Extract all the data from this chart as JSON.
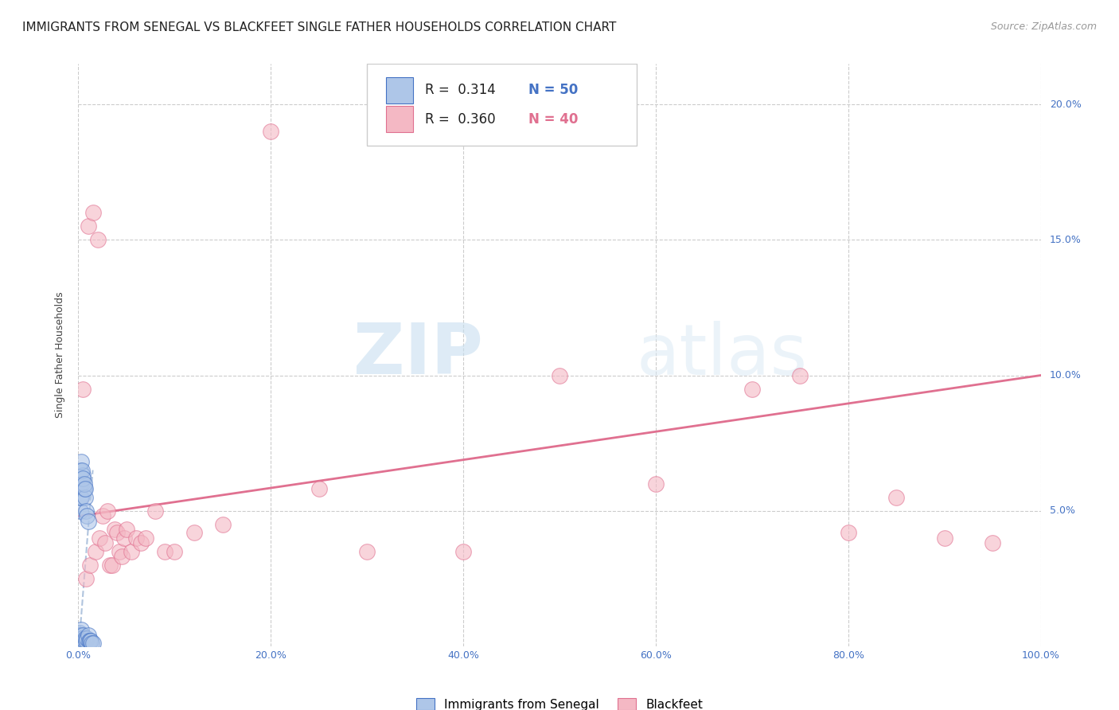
{
  "title": "IMMIGRANTS FROM SENEGAL VS BLACKFEET SINGLE FATHER HOUSEHOLDS CORRELATION CHART",
  "source": "Source: ZipAtlas.com",
  "ylabel": "Single Father Households",
  "xlim": [
    0,
    1.0
  ],
  "ylim": [
    0,
    0.215
  ],
  "xtick_labels": [
    "0.0%",
    "20.0%",
    "40.0%",
    "60.0%",
    "80.0%",
    "100.0%"
  ],
  "xtick_values": [
    0,
    0.2,
    0.4,
    0.6,
    0.8,
    1.0
  ],
  "ytick_labels": [
    "5.0%",
    "10.0%",
    "15.0%",
    "20.0%"
  ],
  "ytick_values": [
    0.05,
    0.1,
    0.15,
    0.2
  ],
  "legend_labels": [
    "Immigrants from Senegal",
    "Blackfeet"
  ],
  "r_blue": "R =  0.314",
  "n_blue": "N = 50",
  "r_pink": "R =  0.360",
  "n_pink": "N = 40",
  "blue_color": "#aec6e8",
  "pink_color": "#f4b8c4",
  "blue_line_color": "#4472c4",
  "pink_line_color": "#e07090",
  "dashed_line_color": "#b0c4de",
  "watermark_zip": "ZIP",
  "watermark_atlas": "atlas",
  "title_fontsize": 11,
  "source_fontsize": 9,
  "axis_label_fontsize": 9,
  "tick_fontsize": 9,
  "legend_fontsize": 11,
  "blue_scatter_x": [
    0.001,
    0.001,
    0.001,
    0.001,
    0.001,
    0.001,
    0.001,
    0.001,
    0.001,
    0.001,
    0.002,
    0.002,
    0.002,
    0.002,
    0.002,
    0.002,
    0.002,
    0.002,
    0.002,
    0.003,
    0.003,
    0.003,
    0.003,
    0.003,
    0.004,
    0.004,
    0.004,
    0.005,
    0.005,
    0.005,
    0.006,
    0.006,
    0.007,
    0.007,
    0.008,
    0.008,
    0.009,
    0.009,
    0.01,
    0.01,
    0.011,
    0.012,
    0.013,
    0.014,
    0.015,
    0.003,
    0.004,
    0.005,
    0.006,
    0.007
  ],
  "blue_scatter_y": [
    0.0,
    0.0,
    0.0,
    0.001,
    0.001,
    0.002,
    0.002,
    0.003,
    0.004,
    0.005,
    0.0,
    0.001,
    0.002,
    0.003,
    0.004,
    0.05,
    0.055,
    0.06,
    0.065,
    0.0,
    0.002,
    0.004,
    0.006,
    0.055,
    0.0,
    0.003,
    0.06,
    0.001,
    0.004,
    0.063,
    0.002,
    0.058,
    0.003,
    0.055,
    0.002,
    0.05,
    0.003,
    0.048,
    0.004,
    0.046,
    0.002,
    0.002,
    0.002,
    0.001,
    0.001,
    0.068,
    0.065,
    0.062,
    0.06,
    0.058
  ],
  "pink_scatter_x": [
    0.005,
    0.008,
    0.01,
    0.012,
    0.015,
    0.018,
    0.02,
    0.022,
    0.025,
    0.028,
    0.03,
    0.033,
    0.035,
    0.038,
    0.04,
    0.043,
    0.045,
    0.048,
    0.05,
    0.055,
    0.06,
    0.065,
    0.07,
    0.08,
    0.09,
    0.1,
    0.12,
    0.15,
    0.2,
    0.25,
    0.3,
    0.4,
    0.5,
    0.6,
    0.7,
    0.75,
    0.8,
    0.85,
    0.9,
    0.95
  ],
  "pink_scatter_y": [
    0.095,
    0.025,
    0.155,
    0.03,
    0.16,
    0.035,
    0.15,
    0.04,
    0.048,
    0.038,
    0.05,
    0.03,
    0.03,
    0.043,
    0.042,
    0.035,
    0.033,
    0.04,
    0.043,
    0.035,
    0.04,
    0.038,
    0.04,
    0.05,
    0.035,
    0.035,
    0.042,
    0.045,
    0.19,
    0.058,
    0.035,
    0.035,
    0.1,
    0.06,
    0.095,
    0.1,
    0.042,
    0.055,
    0.04,
    0.038
  ],
  "blue_trend_x": [
    0.001,
    0.015
  ],
  "blue_trend_y": [
    0.002,
    0.065
  ],
  "pink_trend_x0": 0.0,
  "pink_trend_x1": 1.0,
  "pink_trend_y0": 0.048,
  "pink_trend_y1": 0.1
}
